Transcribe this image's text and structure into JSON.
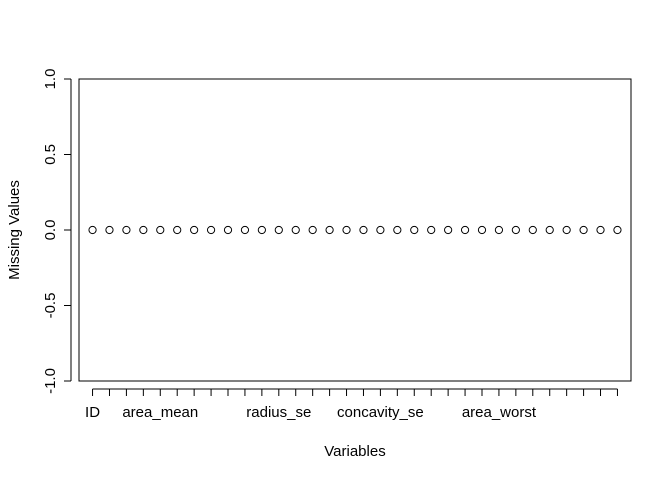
{
  "chart_data": {
    "type": "scatter",
    "title": "",
    "xlabel": "Variables",
    "ylabel": "Missing Values",
    "ylim": [
      -1.0,
      1.0
    ],
    "yticks": [
      {
        "value": -1.0,
        "label": "-1.0"
      },
      {
        "value": -0.5,
        "label": "-0.5"
      },
      {
        "value": 0.0,
        "label": "0.0"
      },
      {
        "value": 0.5,
        "label": "0.5"
      },
      {
        "value": 1.0,
        "label": "1.0"
      }
    ],
    "xlim": [
      0.2,
      32.8
    ],
    "x_tick_count": 32,
    "x_tick_labels": [
      {
        "position": 1,
        "label": "ID"
      },
      {
        "position": 5,
        "label": "area_mean"
      },
      {
        "position": 12,
        "label": "radius_se"
      },
      {
        "position": 18,
        "label": "concavity_se"
      },
      {
        "position": 25,
        "label": "area_worst"
      }
    ],
    "point_style": "open-circle",
    "x": [
      1,
      2,
      3,
      4,
      5,
      6,
      7,
      8,
      9,
      10,
      11,
      12,
      13,
      14,
      15,
      16,
      17,
      18,
      19,
      20,
      21,
      22,
      23,
      24,
      25,
      26,
      27,
      28,
      29,
      30,
      31,
      32
    ],
    "values": [
      0,
      0,
      0,
      0,
      0,
      0,
      0,
      0,
      0,
      0,
      0,
      0,
      0,
      0,
      0,
      0,
      0,
      0,
      0,
      0,
      0,
      0,
      0,
      0,
      0,
      0,
      0,
      0,
      0,
      0,
      0,
      0
    ]
  }
}
